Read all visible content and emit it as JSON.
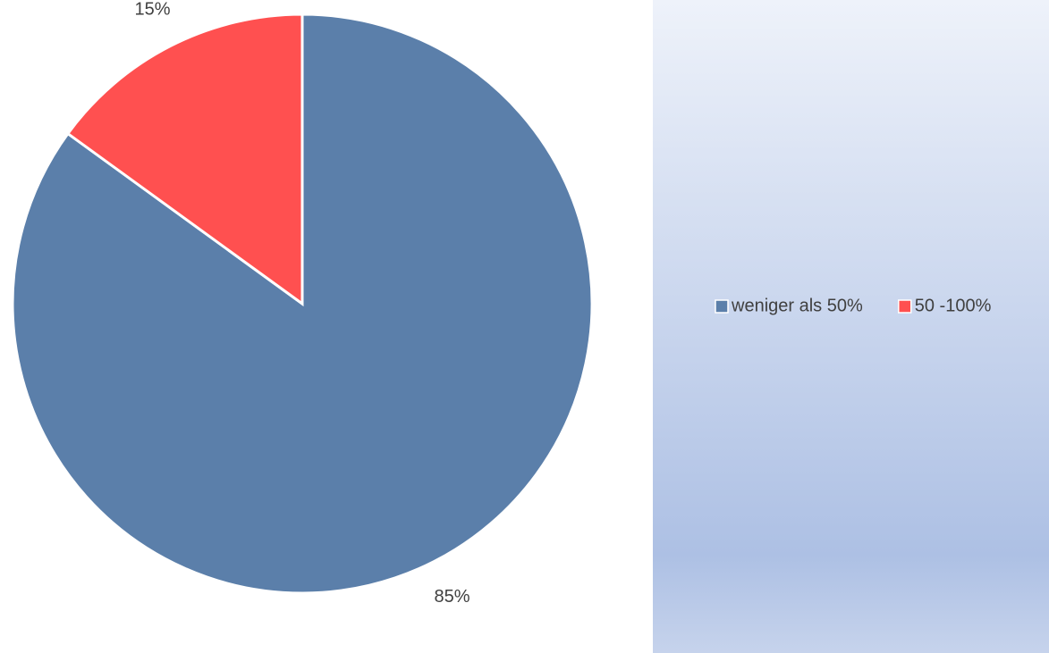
{
  "chart_data": {
    "type": "pie",
    "categories": [
      "weniger als 50%",
      "50 -100%"
    ],
    "values": [
      85,
      15
    ],
    "value_labels": [
      "85%",
      "15%"
    ],
    "colors": [
      "#5b7faa",
      "#ff5050"
    ],
    "legend": "right"
  }
}
